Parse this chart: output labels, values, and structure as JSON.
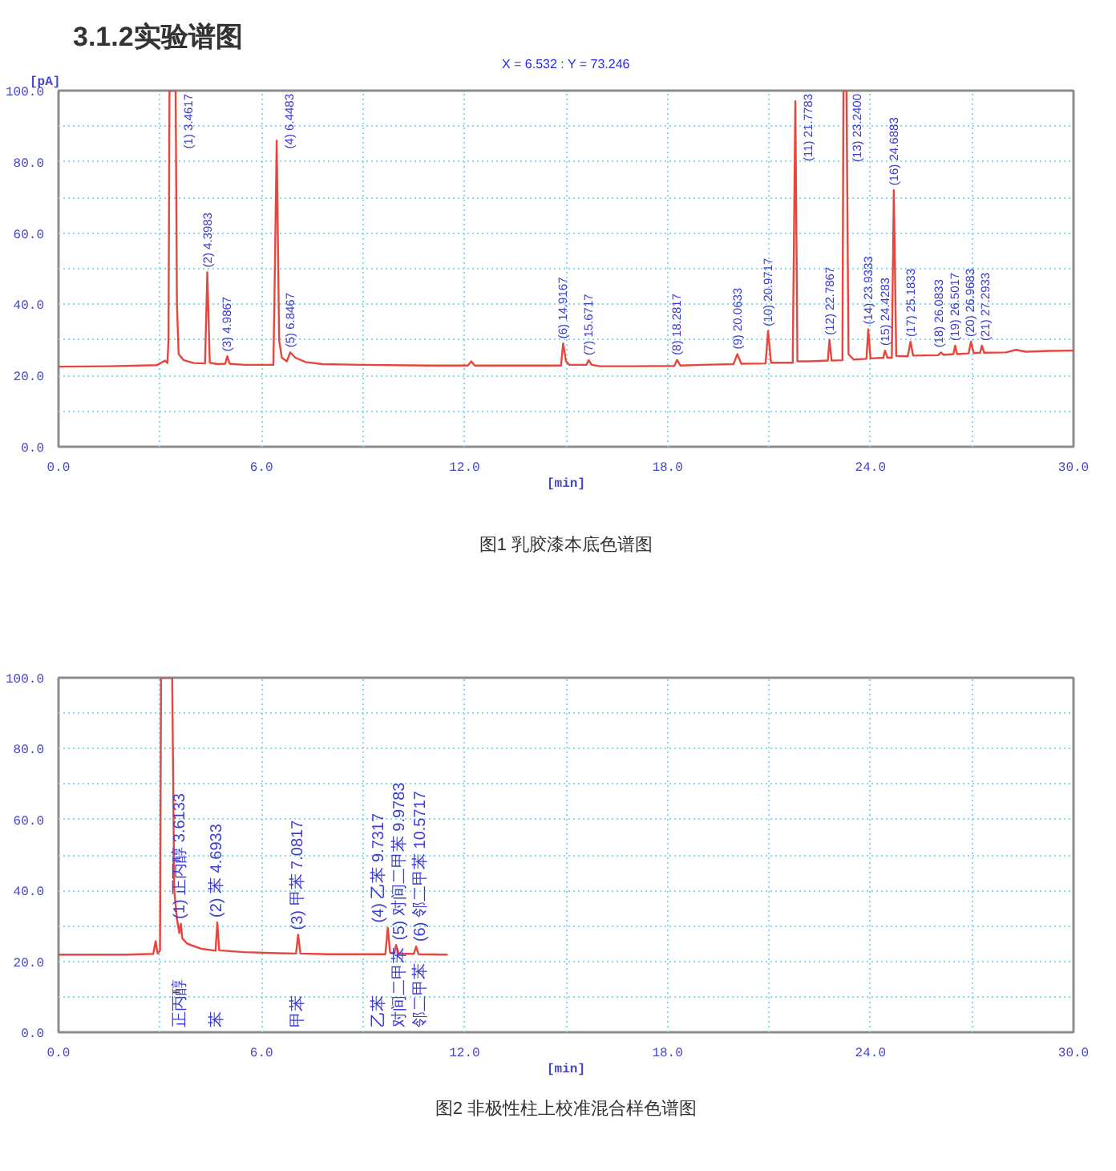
{
  "chart_data": [
    {
      "type": "line",
      "title": "3.1.2实验谱图",
      "subtitle": "X = 6.532 : Y = 73.246",
      "xlabel": "[min]",
      "ylabel": "[pA]",
      "x": [
        0,
        1.5,
        2.9,
        3.15,
        3.22,
        3.25,
        3.28,
        3.4617,
        3.5,
        3.55,
        3.7,
        4.0,
        4.33,
        4.3983,
        4.47,
        4.7,
        4.93,
        4.9867,
        5.06,
        5.5,
        6.35,
        6.38,
        6.4483,
        6.52,
        6.6,
        6.75,
        6.8467,
        7.0,
        7.3,
        7.8,
        9.0,
        11.0,
        12.1,
        12.2,
        12.3,
        14.85,
        14.9167,
        15.0,
        15.1,
        15.6,
        15.6717,
        15.76,
        16.0,
        17.0,
        18.2,
        18.2817,
        18.38,
        19.0,
        19.95,
        20.0633,
        20.18,
        20.9,
        20.9717,
        21.06,
        21.7,
        21.7783,
        21.84,
        22.2,
        22.74,
        22.7867,
        22.85,
        23.17,
        23.2,
        23.29,
        23.35,
        23.5,
        23.88,
        23.9333,
        24.0,
        24.38,
        24.4283,
        24.5,
        24.63,
        24.6883,
        24.76,
        25.1,
        25.1833,
        25.26,
        26.0,
        26.0833,
        26.16,
        26.45,
        26.5017,
        26.56,
        26.9,
        26.9683,
        27.05,
        27.24,
        27.2933,
        27.36,
        28.0,
        28.3,
        28.6,
        29.3,
        30
      ],
      "series": [
        {
          "color": "#e8453c",
          "values": [
            22.5,
            22.6,
            22.9,
            24.2,
            23.5,
            30,
            100,
            100,
            40,
            26,
            24.3,
            23.5,
            23.4,
            49,
            23.6,
            23.2,
            23.3,
            25.4,
            23.3,
            23,
            23,
            40,
            86,
            30,
            25,
            24,
            26.5,
            25,
            23.8,
            23.2,
            23,
            22.8,
            22.8,
            24,
            22.8,
            22.8,
            29,
            24,
            23,
            23,
            24.3,
            23,
            22.6,
            22.6,
            22.7,
            24.4,
            22.8,
            23,
            23.2,
            26,
            23.3,
            23.4,
            32.5,
            23.6,
            23.6,
            97,
            24,
            24,
            24.2,
            30,
            24.2,
            24.3,
            100,
            100,
            26,
            24.5,
            24.7,
            33,
            24.8,
            25,
            27,
            25,
            25,
            72,
            25.5,
            25.4,
            29.5,
            25.6,
            25.7,
            26.5,
            25.8,
            26,
            28.4,
            26,
            26.2,
            29.5,
            26.3,
            26.4,
            28.4,
            26.4,
            26.5,
            27.2,
            26.7,
            26.9,
            27
          ]
        }
      ],
      "xlim": [
        0,
        30
      ],
      "ylim": [
        0,
        100
      ],
      "xticks": [
        {
          "value": 0,
          "label": "0.0"
        },
        {
          "value": 3,
          "label": null
        },
        {
          "value": 6,
          "label": "6.0"
        },
        {
          "value": 9,
          "label": null
        },
        {
          "value": 12,
          "label": "12.0"
        },
        {
          "value": 15,
          "label": null
        },
        {
          "value": 18,
          "label": "18.0"
        },
        {
          "value": 21,
          "label": null
        },
        {
          "value": 24,
          "label": "24.0"
        },
        {
          "value": 27,
          "label": null
        },
        {
          "value": 30,
          "label": "30.0"
        }
      ],
      "yticks": [
        {
          "value": 0,
          "label": "0.0"
        },
        {
          "value": 10,
          "label": null
        },
        {
          "value": 20,
          "label": "20.0"
        },
        {
          "value": 30,
          "label": null
        },
        {
          "value": 40,
          "label": "40.0"
        },
        {
          "value": 50,
          "label": null
        },
        {
          "value": 60,
          "label": "60.0"
        },
        {
          "value": 70,
          "label": null
        },
        {
          "value": 80,
          "label": "80.0"
        },
        {
          "value": 90,
          "label": null
        },
        {
          "value": 100,
          "label": "100.0"
        }
      ],
      "grid": true,
      "annotations": [
        {
          "text": "(1) 3.4617",
          "x": 3.4617,
          "y": 100
        },
        {
          "text": "(2) 4.3983",
          "x": 4.3983,
          "y": 49
        },
        {
          "text": "(3) 4.9867",
          "x": 4.9867,
          "y": 25.4
        },
        {
          "text": "(4) 6.4483",
          "x": 6.4483,
          "y": 86
        },
        {
          "text": "(5) 6.8467",
          "x": 6.8467,
          "y": 26.5
        },
        {
          "text": "(6) 14.9167",
          "x": 14.9167,
          "y": 29
        },
        {
          "text": "(7) 15.6717",
          "x": 15.6717,
          "y": 24.3
        },
        {
          "text": "(8) 18.2817",
          "x": 18.2817,
          "y": 24.4
        },
        {
          "text": "(9) 20.0633",
          "x": 20.0633,
          "y": 26
        },
        {
          "text": "(10) 20.9717",
          "x": 20.9717,
          "y": 32.5
        },
        {
          "text": "(11) 21.7783",
          "x": 21.7783,
          "y": 97
        },
        {
          "text": "(12) 22.7867",
          "x": 22.7867,
          "y": 30
        },
        {
          "text": "(13) 23.2400",
          "x": 23.24,
          "y": 100
        },
        {
          "text": "(14) 23.9333",
          "x": 23.9333,
          "y": 33
        },
        {
          "text": "(15) 24.4283",
          "x": 24.4283,
          "y": 27
        },
        {
          "text": "(16) 24.6883",
          "x": 24.6883,
          "y": 72
        },
        {
          "text": "(17) 25.1833",
          "x": 25.1833,
          "y": 29.5
        },
        {
          "text": "(18) 26.0833",
          "x": 26.0833,
          "y": 26.5
        },
        {
          "text": "(19) 26.5017",
          "x": 26.5017,
          "y": 28.4
        },
        {
          "text": "(20) 26.9683",
          "x": 26.9683,
          "y": 29.5
        },
        {
          "text": "(21) 27.2933",
          "x": 27.2933,
          "y": 28.4
        },
        "图1 乳胶漆本底色谱图"
      ]
    },
    {
      "type": "line",
      "xlabel": "[min]",
      "x": [
        0,
        2.0,
        2.8,
        2.87,
        2.93,
        3.0,
        3.03,
        3.36,
        3.42,
        3.5,
        3.57,
        3.6133,
        3.66,
        3.8,
        4.2,
        4.64,
        4.6933,
        4.75,
        5.5,
        6.5,
        7.02,
        7.0817,
        7.15,
        8.0,
        9.66,
        9.7317,
        9.8,
        9.92,
        9.9783,
        10.05,
        10.5,
        10.5717,
        10.64,
        11.5
      ],
      "series": [
        {
          "color": "#e8453c",
          "values": [
            21.9,
            21.9,
            22.1,
            25.7,
            22.2,
            23,
            100,
            100,
            40,
            32,
            28,
            30.6,
            26.5,
            25,
            23.6,
            23,
            31,
            23.1,
            22.6,
            22.3,
            22.2,
            27.5,
            22.2,
            22,
            22,
            29.5,
            22.4,
            22.2,
            24.6,
            22.1,
            22.1,
            24.2,
            22,
            21.9
          ]
        }
      ],
      "xlim": [
        0,
        30
      ],
      "ylim": [
        0,
        100
      ],
      "xticks": [
        {
          "value": 0,
          "label": "0.0"
        },
        {
          "value": 3,
          "label": null
        },
        {
          "value": 6,
          "label": "6.0"
        },
        {
          "value": 9,
          "label": null
        },
        {
          "value": 12,
          "label": "12.0"
        },
        {
          "value": 15,
          "label": null
        },
        {
          "value": 18,
          "label": "18.0"
        },
        {
          "value": 21,
          "label": null
        },
        {
          "value": 24,
          "label": "24.0"
        },
        {
          "value": 27,
          "label": null
        },
        {
          "value": 30,
          "label": "30.0"
        }
      ],
      "yticks": [
        {
          "value": 0,
          "label": "0.0"
        },
        {
          "value": 10,
          "label": null
        },
        {
          "value": 20,
          "label": "20.0"
        },
        {
          "value": 30,
          "label": null
        },
        {
          "value": 40,
          "label": "40.0"
        },
        {
          "value": 50,
          "label": null
        },
        {
          "value": 60,
          "label": "60.0"
        },
        {
          "value": 70,
          "label": null
        },
        {
          "value": 80,
          "label": "80.0"
        },
        {
          "value": 90,
          "label": null
        },
        {
          "value": 100,
          "label": "100.0"
        }
      ],
      "grid": true,
      "annotations": [
        {
          "text": "(1) 正丙醇 3.6133",
          "x": 3.6133,
          "y": 30.6
        },
        {
          "text": "(2) 苯 4.6933",
          "x": 4.6933,
          "y": 31
        },
        {
          "text": "(3) 甲苯 7.0817",
          "x": 7.0817,
          "y": 27.5
        },
        {
          "text": "(4) 乙苯 9.7317",
          "x": 9.7317,
          "y": 29.5
        },
        {
          "text": "(5) 对间二甲苯 9.9783",
          "x": 9.9783,
          "y": 24.6
        },
        {
          "text": "(6) 邻二甲苯 10.5717",
          "x": 10.5717,
          "y": 24.2
        },
        "正丙醇",
        "苯",
        "甲苯",
        "乙苯",
        "对间二甲苯",
        "邻二甲苯",
        "图2 非极性柱上校准混合样色谱图"
      ]
    }
  ]
}
